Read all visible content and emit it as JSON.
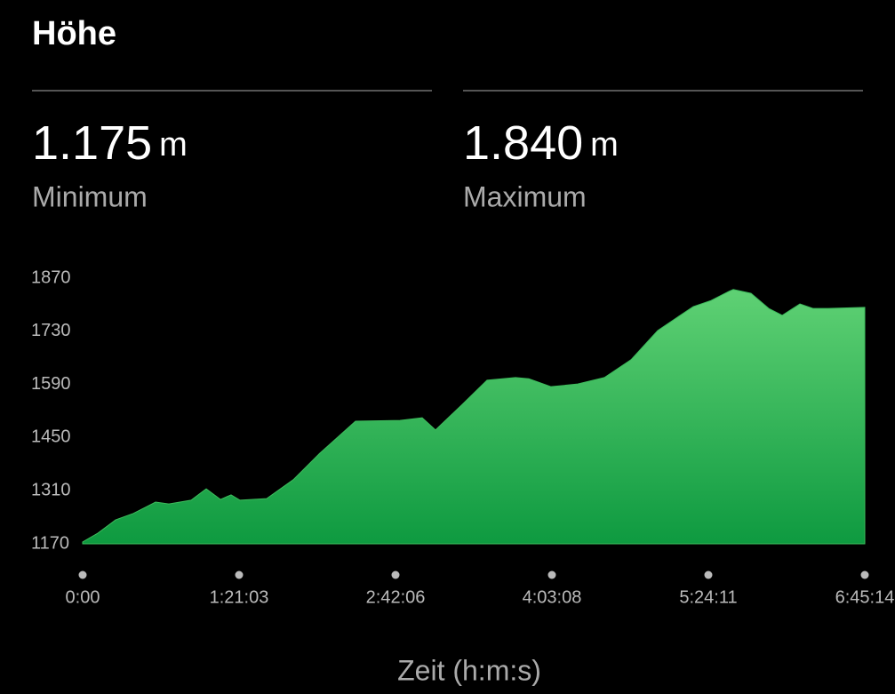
{
  "header": {
    "title": "Höhe"
  },
  "stats": [
    {
      "value": "1.175",
      "unit": "m",
      "label": "Minimum"
    },
    {
      "value": "1.840",
      "unit": "m",
      "label": "Maximum"
    }
  ],
  "chart_data": {
    "type": "area",
    "color": "#3dbb5c",
    "x": [
      0,
      470,
      1022,
      1575,
      1989,
      2266,
      2680,
      3371,
      3841,
      4283,
      4614,
      4891,
      5719,
      6548,
      7377,
      8482,
      9864,
      10555,
      10969,
      11798,
      12571,
      13456,
      13870,
      14561,
      15390,
      16219,
      17048,
      17877,
      18982,
      19535,
      20088,
      20226,
      20778,
      21331,
      21745,
      22298,
      22712,
      23181,
      24314
    ],
    "values": [
      1175,
      1198,
      1233,
      1250,
      1268,
      1280,
      1275,
      1285,
      1315,
      1287,
      1299,
      1285,
      1289,
      1339,
      1409,
      1493,
      1495,
      1502,
      1470,
      1537,
      1601,
      1608,
      1605,
      1584,
      1591,
      1608,
      1655,
      1732,
      1795,
      1811,
      1835,
      1840,
      1830,
      1790,
      1772,
      1802,
      1790,
      1790,
      1793
    ],
    "xlim": [
      0,
      24314
    ],
    "ylim": [
      1170,
      1870
    ],
    "yticks": [
      1170,
      1310,
      1450,
      1590,
      1730,
      1870
    ],
    "xticks": [
      {
        "value": 0,
        "label": "0:00"
      },
      {
        "value": 4863,
        "label": "1:21:03"
      },
      {
        "value": 9726,
        "label": "2:42:06"
      },
      {
        "value": 14588,
        "label": "4:03:08"
      },
      {
        "value": 19451,
        "label": "5:24:11"
      },
      {
        "value": 24314,
        "label": "6:45:14"
      }
    ],
    "x_label": "Zeit (h:m:s)"
  }
}
